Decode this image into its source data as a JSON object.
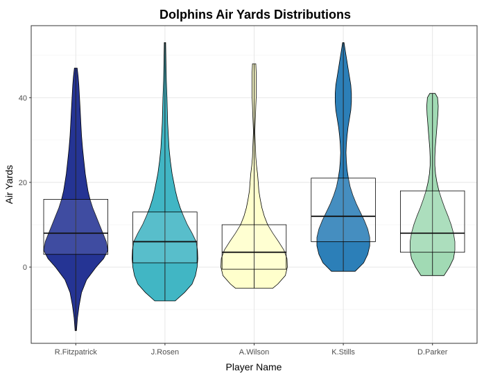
{
  "chart_data": {
    "type": "violin",
    "title": "Dolphins Air Yards Distributions",
    "xlabel": "Player Name",
    "ylabel": "Air Yards",
    "ylim": [
      -18,
      57
    ],
    "yticks": [
      0,
      20,
      40
    ],
    "grid": true,
    "legend": "none",
    "series": [
      {
        "name": "R.Fitzpatrick",
        "color": "#253494",
        "min": -15,
        "q1": 3,
        "median": 8,
        "q3": 16,
        "max": 47,
        "density": [
          [
            -15,
            0.02
          ],
          [
            -12,
            0.05
          ],
          [
            -9,
            0.1
          ],
          [
            -6,
            0.17
          ],
          [
            -3,
            0.32
          ],
          [
            0,
            0.6
          ],
          [
            2,
            0.82
          ],
          [
            4,
            0.95
          ],
          [
            6,
            0.9
          ],
          [
            8,
            0.8
          ],
          [
            10,
            0.7
          ],
          [
            12,
            0.6
          ],
          [
            14,
            0.5
          ],
          [
            16,
            0.42
          ],
          [
            18,
            0.36
          ],
          [
            20,
            0.32
          ],
          [
            22,
            0.28
          ],
          [
            25,
            0.24
          ],
          [
            28,
            0.2
          ],
          [
            31,
            0.17
          ],
          [
            34,
            0.15
          ],
          [
            37,
            0.13
          ],
          [
            40,
            0.11
          ],
          [
            43,
            0.09
          ],
          [
            45,
            0.07
          ],
          [
            47,
            0.04
          ]
        ]
      },
      {
        "name": "J.Rosen",
        "color": "#41b6c4",
        "min": -8,
        "q1": 1,
        "median": 6,
        "q3": 13,
        "max": 53,
        "density": [
          [
            -8,
            0.3
          ],
          [
            -6,
            0.58
          ],
          [
            -4,
            0.8
          ],
          [
            -2,
            0.9
          ],
          [
            0,
            0.95
          ],
          [
            2,
            0.97
          ],
          [
            4,
            0.96
          ],
          [
            6,
            0.92
          ],
          [
            8,
            0.8
          ],
          [
            10,
            0.66
          ],
          [
            12,
            0.55
          ],
          [
            14,
            0.45
          ],
          [
            16,
            0.37
          ],
          [
            18,
            0.31
          ],
          [
            20,
            0.26
          ],
          [
            22,
            0.21
          ],
          [
            25,
            0.16
          ],
          [
            28,
            0.12
          ],
          [
            31,
            0.1
          ],
          [
            34,
            0.08
          ],
          [
            37,
            0.07
          ],
          [
            40,
            0.06
          ],
          [
            44,
            0.04
          ],
          [
            48,
            0.03
          ],
          [
            53,
            0.02
          ]
        ]
      },
      {
        "name": "A.Wilson",
        "color": "#ffffcc",
        "min": -5,
        "q1": -0.5,
        "median": 3.5,
        "q3": 10,
        "max": 48,
        "density": [
          [
            -5,
            0.55
          ],
          [
            -4,
            0.7
          ],
          [
            -2,
            0.92
          ],
          [
            0,
            0.98
          ],
          [
            2,
            0.97
          ],
          [
            4,
            0.88
          ],
          [
            6,
            0.72
          ],
          [
            8,
            0.55
          ],
          [
            10,
            0.4
          ],
          [
            12,
            0.3
          ],
          [
            14,
            0.23
          ],
          [
            16,
            0.18
          ],
          [
            18,
            0.14
          ],
          [
            20,
            0.12
          ],
          [
            22,
            0.1
          ],
          [
            24,
            0.07
          ],
          [
            26,
            0.05
          ],
          [
            28,
            0.04
          ],
          [
            30,
            0.03
          ],
          [
            32,
            0.02
          ],
          [
            34,
            0.03
          ],
          [
            36,
            0.04
          ],
          [
            38,
            0.05
          ],
          [
            40,
            0.06
          ],
          [
            43,
            0.06
          ],
          [
            46,
            0.06
          ],
          [
            48,
            0.05
          ]
        ]
      },
      {
        "name": "K.Stills",
        "color": "#2c7fb8",
        "min": -1,
        "q1": 6,
        "median": 12,
        "q3": 21,
        "max": 53,
        "density": [
          [
            -1,
            0.35
          ],
          [
            1,
            0.6
          ],
          [
            3,
            0.72
          ],
          [
            5,
            0.78
          ],
          [
            7,
            0.78
          ],
          [
            9,
            0.72
          ],
          [
            11,
            0.62
          ],
          [
            13,
            0.5
          ],
          [
            15,
            0.38
          ],
          [
            17,
            0.28
          ],
          [
            19,
            0.2
          ],
          [
            21,
            0.15
          ],
          [
            23,
            0.11
          ],
          [
            25,
            0.09
          ],
          [
            27,
            0.08
          ],
          [
            29,
            0.09
          ],
          [
            31,
            0.11
          ],
          [
            33,
            0.14
          ],
          [
            35,
            0.18
          ],
          [
            37,
            0.22
          ],
          [
            39,
            0.24
          ],
          [
            41,
            0.24
          ],
          [
            43,
            0.22
          ],
          [
            45,
            0.18
          ],
          [
            47,
            0.14
          ],
          [
            49,
            0.1
          ],
          [
            51,
            0.06
          ],
          [
            53,
            0.02
          ]
        ]
      },
      {
        "name": "D.Parker",
        "color": "#a1dab4",
        "min": -2,
        "q1": 3.5,
        "median": 8,
        "q3": 18,
        "max": 41,
        "density": [
          [
            -2,
            0.34
          ],
          [
            0,
            0.5
          ],
          [
            2,
            0.62
          ],
          [
            4,
            0.66
          ],
          [
            6,
            0.66
          ],
          [
            8,
            0.62
          ],
          [
            10,
            0.55
          ],
          [
            12,
            0.46
          ],
          [
            14,
            0.36
          ],
          [
            16,
            0.27
          ],
          [
            18,
            0.19
          ],
          [
            20,
            0.13
          ],
          [
            22,
            0.09
          ],
          [
            24,
            0.07
          ],
          [
            26,
            0.07
          ],
          [
            28,
            0.08
          ],
          [
            30,
            0.1
          ],
          [
            32,
            0.12
          ],
          [
            34,
            0.14
          ],
          [
            36,
            0.16
          ],
          [
            38,
            0.17
          ],
          [
            40,
            0.15
          ],
          [
            41,
            0.08
          ]
        ]
      }
    ]
  }
}
